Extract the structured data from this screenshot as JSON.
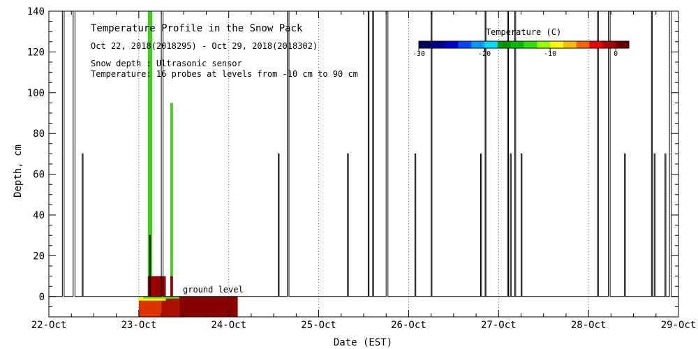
{
  "chart_data": {
    "type": "line",
    "title": "Temperature Profile in the Snow Pack",
    "subtitle": "Oct 22, 2018(2018295) - Oct 29, 2018(2018302)",
    "annotations": [
      "Snow depth : Ultrasonic sensor",
      "Temperature: 16 probes at levels from -10 cm to 90 cm"
    ],
    "ground_label": "ground level",
    "xlabel": "Date (EST)",
    "ylabel": "Depth, cm",
    "x_ticks": [
      "22-Oct",
      "23-Oct",
      "24-Oct",
      "25-Oct",
      "26-Oct",
      "27-Oct",
      "28-Oct",
      "29-Oct"
    ],
    "y_ticks": [
      "0",
      "20",
      "40",
      "60",
      "80",
      "100",
      "120",
      "140"
    ],
    "xlim": [
      0,
      7
    ],
    "ylim": [
      -10,
      140
    ],
    "grid": "dotted vertical at day boundaries",
    "series": [
      {
        "points": [
          [
            0.0,
            0
          ],
          [
            0.15,
            0
          ],
          [
            0.15,
            140
          ],
          [
            0.17,
            140
          ],
          [
            0.17,
            0
          ],
          [
            0.27,
            0
          ],
          [
            0.27,
            140
          ],
          [
            0.29,
            140
          ],
          [
            0.29,
            0
          ],
          [
            0.37,
            0
          ],
          [
            0.37,
            70
          ],
          [
            0.38,
            70
          ],
          [
            0.38,
            0
          ],
          [
            1.12,
            0
          ],
          [
            1.12,
            30
          ],
          [
            1.13,
            30
          ],
          [
            1.13,
            0
          ],
          [
            1.25,
            0
          ],
          [
            1.25,
            140
          ],
          [
            1.27,
            140
          ],
          [
            1.27,
            0
          ],
          [
            2.55,
            0
          ],
          [
            2.55,
            70
          ],
          [
            2.56,
            70
          ],
          [
            2.56,
            0
          ],
          [
            2.65,
            0
          ],
          [
            2.65,
            140
          ],
          [
            2.67,
            140
          ],
          [
            2.67,
            0
          ],
          [
            3.32,
            0
          ],
          [
            3.32,
            70
          ],
          [
            3.33,
            70
          ],
          [
            3.33,
            0
          ],
          [
            3.55,
            0
          ],
          [
            3.55,
            140
          ],
          [
            3.56,
            140
          ],
          [
            3.56,
            0
          ],
          [
            3.6,
            0
          ],
          [
            3.6,
            140
          ],
          [
            3.61,
            140
          ],
          [
            3.61,
            0
          ],
          [
            3.75,
            0
          ],
          [
            3.75,
            140
          ],
          [
            3.77,
            140
          ],
          [
            3.77,
            0
          ],
          [
            4.07,
            0
          ],
          [
            4.07,
            70
          ],
          [
            4.08,
            70
          ],
          [
            4.08,
            0
          ],
          [
            4.25,
            0
          ],
          [
            4.25,
            140
          ],
          [
            4.26,
            140
          ],
          [
            4.26,
            0
          ],
          [
            4.8,
            0
          ],
          [
            4.8,
            70
          ],
          [
            4.81,
            70
          ],
          [
            4.81,
            0
          ],
          [
            4.85,
            0
          ],
          [
            4.85,
            140
          ],
          [
            4.86,
            140
          ],
          [
            4.86,
            0
          ],
          [
            5.1,
            0
          ],
          [
            5.1,
            140
          ],
          [
            5.11,
            140
          ],
          [
            5.11,
            0
          ],
          [
            5.13,
            0
          ],
          [
            5.13,
            70
          ],
          [
            5.14,
            70
          ],
          [
            5.14,
            0
          ],
          [
            5.18,
            0
          ],
          [
            5.18,
            140
          ],
          [
            5.19,
            140
          ],
          [
            5.19,
            0
          ],
          [
            5.25,
            0
          ],
          [
            5.25,
            70
          ],
          [
            5.26,
            70
          ],
          [
            5.26,
            0
          ],
          [
            6.1,
            0
          ],
          [
            6.1,
            140
          ],
          [
            6.11,
            140
          ],
          [
            6.11,
            0
          ],
          [
            6.22,
            0
          ],
          [
            6.22,
            140
          ],
          [
            6.24,
            140
          ],
          [
            6.24,
            0
          ],
          [
            6.4,
            0
          ],
          [
            6.4,
            70
          ],
          [
            6.41,
            70
          ],
          [
            6.41,
            0
          ],
          [
            6.7,
            0
          ],
          [
            6.7,
            140
          ],
          [
            6.71,
            140
          ],
          [
            6.71,
            0
          ],
          [
            6.73,
            0
          ],
          [
            6.73,
            70
          ],
          [
            6.74,
            70
          ],
          [
            6.74,
            0
          ],
          [
            6.85,
            0
          ],
          [
            6.85,
            70
          ],
          [
            6.86,
            70
          ],
          [
            6.86,
            0
          ],
          [
            6.9,
            0
          ],
          [
            6.9,
            140
          ],
          [
            6.92,
            140
          ],
          [
            6.92,
            0
          ],
          [
            7.0,
            0
          ]
        ]
      }
    ],
    "temperature_cells": [
      {
        "t0": 1.0,
        "t1": 1.25,
        "z0": -10,
        "z1": 0,
        "color": "#dd3300"
      },
      {
        "t0": 1.25,
        "t1": 1.45,
        "z0": -10,
        "z1": 0,
        "color": "#aa1100"
      },
      {
        "t0": 1.45,
        "t1": 2.1,
        "z0": -10,
        "z1": 0,
        "color": "#880000"
      },
      {
        "t0": 1.0,
        "t1": 1.3,
        "z0": -2,
        "z1": 0,
        "color": "#ffff00"
      },
      {
        "t0": 1.05,
        "t1": 1.45,
        "z0": -1,
        "z1": 0,
        "color": "#66dd22"
      },
      {
        "t0": 1.1,
        "t1": 1.3,
        "z0": 0,
        "z1": 10,
        "color": "#990000"
      },
      {
        "t0": 1.1,
        "t1": 1.15,
        "z0": 10,
        "z1": 140,
        "color": "#44cc22"
      },
      {
        "t0": 1.35,
        "t1": 1.38,
        "z0": 0,
        "z1": 10,
        "color": "#990000"
      },
      {
        "t0": 1.35,
        "t1": 1.38,
        "z0": 10,
        "z1": 95,
        "color": "#44cc22"
      }
    ],
    "colorbar": {
      "title": "Temperature (C)",
      "ticks": [
        "-30",
        "-20",
        "-10",
        "0"
      ],
      "range": [
        -30,
        2
      ],
      "colors": [
        "#000060",
        "#000090",
        "#0000cc",
        "#0044ff",
        "#0099ff",
        "#00ddff",
        "#009900",
        "#00bb00",
        "#33dd00",
        "#99ff00",
        "#ffff00",
        "#ffbb00",
        "#ff6600",
        "#ee0000",
        "#aa0000",
        "#660000"
      ]
    }
  }
}
